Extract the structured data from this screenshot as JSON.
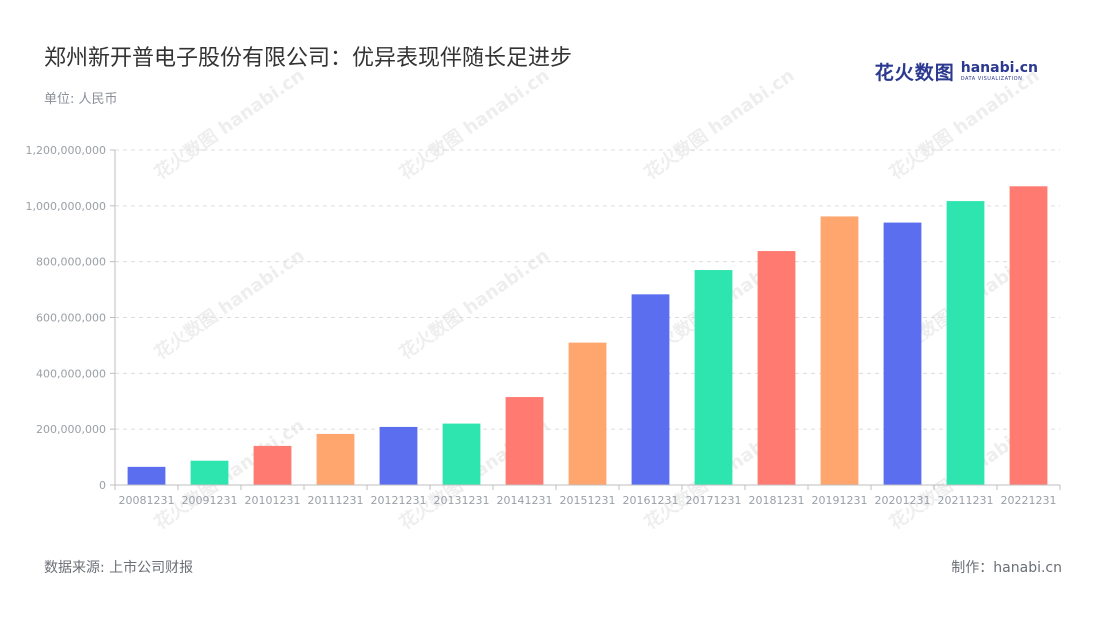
{
  "header": {
    "title": "郑州新开普电子股份有限公司：优异表现伴随长足进步",
    "unit": "单位: 人民币"
  },
  "logo": {
    "cn": "花火数图",
    "en": "hanabi.cn",
    "sub": "DATA VISUALIZATION",
    "watermark_text": "花火数图 hanabi.cn"
  },
  "footer": {
    "source": "数据来源: 上市公司财报",
    "credit": "制作：hanabi.cn"
  },
  "colors": {
    "palette": [
      "#5b6ef0",
      "#2ee5b0",
      "#ff7a70",
      "#ffa56e"
    ],
    "grid": "#dcdcdc",
    "axis": "#bfbfbf"
  },
  "chart_data": {
    "type": "bar",
    "categories": [
      "20081231",
      "20091231",
      "20101231",
      "20111231",
      "20121231",
      "20131231",
      "20141231",
      "20151231",
      "20161231",
      "20171231",
      "20181231",
      "20191231",
      "20201231",
      "20211231",
      "20221231"
    ],
    "values": [
      65000000,
      87000000,
      140000000,
      183000000,
      208000000,
      220000000,
      315000000,
      510000000,
      683000000,
      770000000,
      838000000,
      962000000,
      940000000,
      1017000000,
      1070000000
    ],
    "bar_colors": [
      "#5b6ef0",
      "#2ee5b0",
      "#ff7a70",
      "#ffa56e",
      "#5b6ef0",
      "#2ee5b0",
      "#ff7a70",
      "#ffa56e",
      "#5b6ef0",
      "#2ee5b0",
      "#ff7a70",
      "#ffa56e",
      "#5b6ef0",
      "#2ee5b0",
      "#ff7a70"
    ],
    "yticks": [
      0,
      200000000,
      400000000,
      600000000,
      800000000,
      1000000000,
      1200000000
    ],
    "ytick_labels": [
      "0",
      "200,000,000",
      "400,000,000",
      "600,000,000",
      "800,000,000",
      "1,000,000,000",
      "1,200,000,000"
    ],
    "ylim": [
      0,
      1200000000
    ],
    "grid": true,
    "legend": "none"
  }
}
